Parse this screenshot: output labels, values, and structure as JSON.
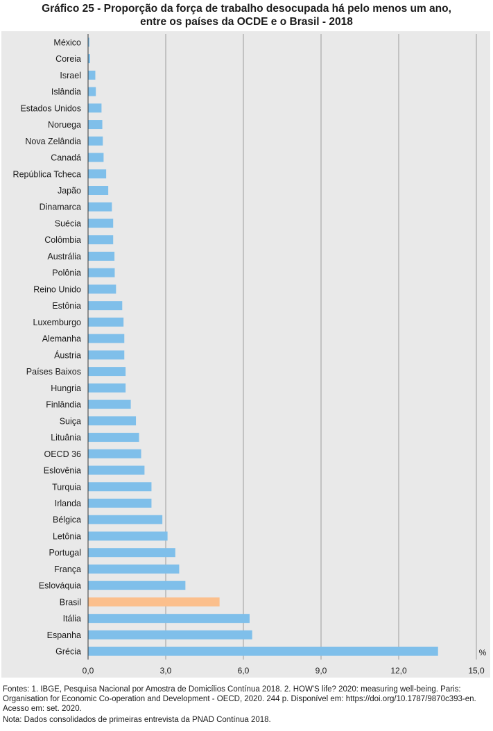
{
  "chart_data": {
    "type": "bar",
    "orientation": "horizontal",
    "title_line1": "Gráfico 25 - Proporção da força de trabalho desocupada há pelo menos um ano,",
    "title_line2": "entre os países da OCDE e o Brasil - 2018",
    "unit": "%",
    "xlim": [
      0,
      15
    ],
    "ticks": [
      "0,0",
      "3,0",
      "6,0",
      "9,0",
      "12,0",
      "15,0"
    ],
    "grid": "vertical",
    "categories": [
      "México",
      "Coreia",
      "Israel",
      "Islândia",
      "Estados Unidos",
      "Noruega",
      "Nova Zelândia",
      "Canadá",
      "República Tcheca",
      "Japão",
      "Dinamarca",
      "Suécia",
      "Colômbia",
      "Austrália",
      "Polônia",
      "Reino Unido",
      "Estônia",
      "Luxemburgo",
      "Alemanha",
      "Áustria",
      "Países Baixos",
      "Hungria",
      "Finlândia",
      "Suiça",
      "Lituânia",
      "OECD 36",
      "Eslovênia",
      "Turquia",
      "Irlanda",
      "Bélgica",
      "Letônia",
      "Portugal",
      "França",
      "Eslováquia",
      "Brasil",
      "Itália",
      "Espanha",
      "Grécia"
    ],
    "values": [
      0.05,
      0.08,
      0.28,
      0.3,
      0.52,
      0.55,
      0.57,
      0.6,
      0.7,
      0.78,
      0.92,
      0.97,
      0.97,
      1.02,
      1.03,
      1.08,
      1.32,
      1.37,
      1.4,
      1.4,
      1.45,
      1.45,
      1.65,
      1.85,
      1.97,
      2.05,
      2.18,
      2.45,
      2.45,
      2.87,
      3.07,
      3.37,
      3.52,
      3.76,
      5.08,
      6.24,
      6.34,
      13.52
    ],
    "colors": {
      "default": "#7fbfea",
      "highlight": "#fbbf8c",
      "grid": "#9a9a9a",
      "axis": "#333333"
    },
    "highlight_category": "Brasil"
  },
  "notes": {
    "fontes": "Fontes: 1. IBGE, Pesquisa Nacional por Amostra de Domicílios Contínua 2018. 2. HOW'S life? 2020: measuring well-being. Paris: Organisation for Economic Co-operation and Development - OECD, 2020. 244 p. Disponível em: https://doi.org/10.1787/9870c393-en. Acesso em: set. 2020.",
    "nota": "Nota: Dados consolidados de primeiras entrevista da PNAD Contínua 2018."
  }
}
